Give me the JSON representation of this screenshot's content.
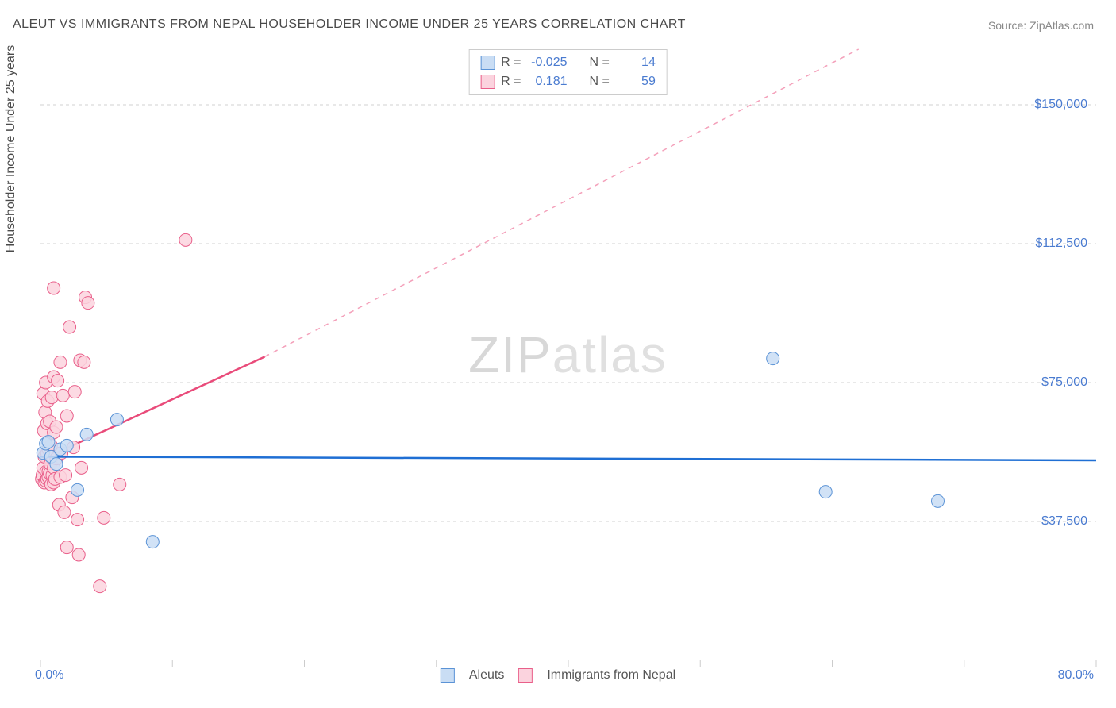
{
  "title": "ALEUT VS IMMIGRANTS FROM NEPAL HOUSEHOLDER INCOME UNDER 25 YEARS CORRELATION CHART",
  "source": "Source: ZipAtlas.com",
  "watermark_bold": "ZIP",
  "watermark_thin": "atlas",
  "chart": {
    "type": "scatter",
    "xlim": [
      0,
      80
    ],
    "ylim": [
      0,
      165000
    ],
    "x_label_min": "0.0%",
    "x_label_max": "80.0%",
    "y_axis_title": "Householder Income Under 25 years",
    "y_ticks": [
      37500,
      75000,
      112500,
      150000
    ],
    "y_tick_labels": [
      "$37,500",
      "$75,000",
      "$112,500",
      "$150,000"
    ],
    "x_ticks": [
      0,
      10,
      20,
      30,
      40,
      50,
      60,
      70,
      80
    ],
    "grid_color": "#d0d0d0",
    "axis_color": "#cccccc",
    "tick_label_color": "#4a7bd0",
    "background_color": "#ffffff",
    "series": [
      {
        "name": "Aleuts",
        "marker_fill": "#c9ddf4",
        "marker_stroke": "#5b93d6",
        "marker_radius": 8,
        "trend_line_color": "#1f6fd4",
        "trend_line_width": 2.5,
        "trend_dash_color": "#1f6fd4",
        "R": "-0.025",
        "N": "14",
        "trend": {
          "x1": 0,
          "y1": 55000,
          "x2": 80,
          "y2": 54000
        },
        "points": [
          {
            "x": 0.2,
            "y": 56000
          },
          {
            "x": 0.4,
            "y": 58500
          },
          {
            "x": 0.6,
            "y": 59000
          },
          {
            "x": 0.8,
            "y": 55000
          },
          {
            "x": 1.2,
            "y": 53000
          },
          {
            "x": 1.5,
            "y": 57000
          },
          {
            "x": 2.0,
            "y": 58000
          },
          {
            "x": 2.8,
            "y": 46000
          },
          {
            "x": 3.5,
            "y": 61000
          },
          {
            "x": 5.8,
            "y": 65000
          },
          {
            "x": 8.5,
            "y": 32000
          },
          {
            "x": 55.5,
            "y": 81500
          },
          {
            "x": 59.5,
            "y": 45500
          },
          {
            "x": 68.0,
            "y": 43000
          }
        ]
      },
      {
        "name": "Immigrants from Nepal",
        "marker_fill": "#fbd3de",
        "marker_stroke": "#e95f8a",
        "marker_radius": 8,
        "trend_line_color": "#e94b7a",
        "trend_line_width": 2.5,
        "trend_dash_color": "#f4a0ba",
        "R": "0.181",
        "N": "59",
        "trend_solid": {
          "x1": 0,
          "y1": 54000,
          "x2": 17,
          "y2": 82000
        },
        "trend_dash": {
          "x1": 17,
          "y1": 82000,
          "x2": 62,
          "y2": 165000
        },
        "points": [
          {
            "x": 0.1,
            "y": 49000
          },
          {
            "x": 0.15,
            "y": 50000
          },
          {
            "x": 0.2,
            "y": 52000
          },
          {
            "x": 0.2,
            "y": 72000
          },
          {
            "x": 0.25,
            "y": 62000
          },
          {
            "x": 0.3,
            "y": 48000
          },
          {
            "x": 0.3,
            "y": 55000
          },
          {
            "x": 0.35,
            "y": 67000
          },
          {
            "x": 0.4,
            "y": 48500
          },
          {
            "x": 0.4,
            "y": 75000
          },
          {
            "x": 0.45,
            "y": 51000
          },
          {
            "x": 0.5,
            "y": 49000
          },
          {
            "x": 0.5,
            "y": 56000
          },
          {
            "x": 0.5,
            "y": 64000
          },
          {
            "x": 0.55,
            "y": 70000
          },
          {
            "x": 0.6,
            "y": 49500
          },
          {
            "x": 0.6,
            "y": 51000
          },
          {
            "x": 0.6,
            "y": 57000
          },
          {
            "x": 0.7,
            "y": 50500
          },
          {
            "x": 0.7,
            "y": 64500
          },
          {
            "x": 0.75,
            "y": 53000
          },
          {
            "x": 0.8,
            "y": 47500
          },
          {
            "x": 0.8,
            "y": 58000
          },
          {
            "x": 0.85,
            "y": 71000
          },
          {
            "x": 0.9,
            "y": 50000
          },
          {
            "x": 0.9,
            "y": 55000
          },
          {
            "x": 1.0,
            "y": 48000
          },
          {
            "x": 1.0,
            "y": 52000
          },
          {
            "x": 1.0,
            "y": 61500
          },
          {
            "x": 1.0,
            "y": 76500
          },
          {
            "x": 1.0,
            "y": 100500
          },
          {
            "x": 1.1,
            "y": 49000
          },
          {
            "x": 1.2,
            "y": 54500
          },
          {
            "x": 1.2,
            "y": 63000
          },
          {
            "x": 1.3,
            "y": 75500
          },
          {
            "x": 1.4,
            "y": 42000
          },
          {
            "x": 1.5,
            "y": 49500
          },
          {
            "x": 1.5,
            "y": 80500
          },
          {
            "x": 1.6,
            "y": 56000
          },
          {
            "x": 1.7,
            "y": 71500
          },
          {
            "x": 1.8,
            "y": 40000
          },
          {
            "x": 1.9,
            "y": 50000
          },
          {
            "x": 2.0,
            "y": 30500
          },
          {
            "x": 2.0,
            "y": 66000
          },
          {
            "x": 2.2,
            "y": 90000
          },
          {
            "x": 2.4,
            "y": 44000
          },
          {
            "x": 2.5,
            "y": 57500
          },
          {
            "x": 2.6,
            "y": 72500
          },
          {
            "x": 2.8,
            "y": 38000
          },
          {
            "x": 2.9,
            "y": 28500
          },
          {
            "x": 3.0,
            "y": 81000
          },
          {
            "x": 3.1,
            "y": 52000
          },
          {
            "x": 3.3,
            "y": 80500
          },
          {
            "x": 3.4,
            "y": 98000
          },
          {
            "x": 3.6,
            "y": 96500
          },
          {
            "x": 4.5,
            "y": 20000
          },
          {
            "x": 4.8,
            "y": 38500
          },
          {
            "x": 6.0,
            "y": 47500
          },
          {
            "x": 11.0,
            "y": 113500
          }
        ]
      }
    ]
  },
  "stats_legend": {
    "r_label": "R =",
    "n_label": "N ="
  },
  "bottom_legend": {
    "series1": "Aleuts",
    "series2": "Immigrants from Nepal"
  }
}
